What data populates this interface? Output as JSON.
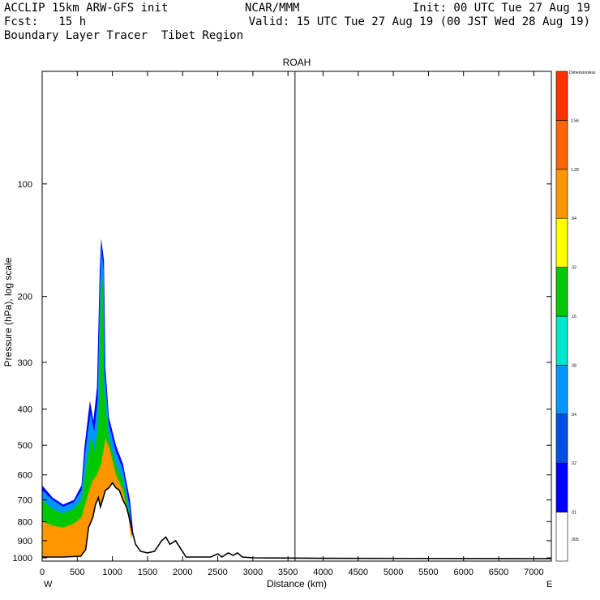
{
  "header": {
    "line1_left": "ACCLIP 15km ARW-GFS init",
    "line1_mid": "NCAR/MMM",
    "line1_right": "Init: 00 UTC Tue 27 Aug 19",
    "line2_left": "Fcst:   15 h",
    "line2_right": "Valid: 15 UTC Tue 27 Aug 19 (00 JST Wed 28 Aug 19)",
    "line3_left": "Boundary Layer Tracer  Tibet Region"
  },
  "chart_data": {
    "type": "heatmap",
    "title": "ROAH",
    "xlabel": "Distance (km)",
    "ylabel": "Pressure (hPa), log scale",
    "x_range": [
      0,
      7250
    ],
    "y_range_hpa": [
      1020,
      50
    ],
    "y_scale": "log",
    "x_ticks": [
      "0",
      "500",
      "1000",
      "1500",
      "2000",
      "2500",
      "3000",
      "3500",
      "4000",
      "4500",
      "5000",
      "5500",
      "6000",
      "6500",
      "7000"
    ],
    "y_ticks": [
      "100",
      "200",
      "300",
      "400",
      "500",
      "600",
      "700",
      "800",
      "900",
      "1000"
    ],
    "x_end_labels": {
      "left": "W",
      "right": "E"
    },
    "vertical_marker_km": 3600,
    "colorbar": {
      "units": "Dimensionless",
      "levels": [
        ".005",
        ".01",
        ".02",
        ".04",
        ".08",
        ".16",
        ".32",
        ".64",
        "1.28",
        "2.56"
      ],
      "colors": [
        "#ffffff",
        "#0000ff",
        "#0050e6",
        "#0096ff",
        "#00e6c8",
        "#00c800",
        "#ffff00",
        "#ff9600",
        "#ff6400",
        "#ff3200"
      ]
    },
    "terrain_hpa": [
      [
        0,
        995
      ],
      [
        300,
        995
      ],
      [
        550,
        990
      ],
      [
        620,
        950
      ],
      [
        660,
        830
      ],
      [
        720,
        780
      ],
      [
        760,
        720
      ],
      [
        800,
        690
      ],
      [
        830,
        730
      ],
      [
        860,
        700
      ],
      [
        900,
        660
      ],
      [
        950,
        650
      ],
      [
        1000,
        630
      ],
      [
        1050,
        650
      ],
      [
        1100,
        660
      ],
      [
        1150,
        700
      ],
      [
        1200,
        730
      ],
      [
        1240,
        780
      ],
      [
        1290,
        860
      ],
      [
        1330,
        920
      ],
      [
        1400,
        960
      ],
      [
        1500,
        970
      ],
      [
        1600,
        960
      ],
      [
        1700,
        900
      ],
      [
        1760,
        880
      ],
      [
        1820,
        920
      ],
      [
        1900,
        900
      ],
      [
        1980,
        950
      ],
      [
        2050,
        995
      ],
      [
        2400,
        995
      ],
      [
        2500,
        975
      ],
      [
        2560,
        995
      ],
      [
        2650,
        970
      ],
      [
        2720,
        985
      ],
      [
        2780,
        970
      ],
      [
        2850,
        995
      ],
      [
        3000,
        1000
      ],
      [
        4000,
        1003
      ],
      [
        7250,
        1005
      ]
    ],
    "tracer_layers": [
      {
        "level": ".01",
        "color": "#0000ff",
        "upper_hpa": [
          [
            0,
            640
          ],
          [
            150,
            690
          ],
          [
            300,
            720
          ],
          [
            450,
            700
          ],
          [
            560,
            640
          ],
          [
            600,
            510
          ],
          [
            640,
            440
          ],
          [
            680,
            380
          ],
          [
            730,
            430
          ],
          [
            780,
            350
          ],
          [
            820,
            170
          ],
          [
            840,
            140
          ],
          [
            880,
            160
          ],
          [
            900,
            310
          ],
          [
            950,
            420
          ],
          [
            1050,
            500
          ],
          [
            1150,
            560
          ],
          [
            1250,
            700
          ],
          [
            1300,
            870
          ]
        ]
      },
      {
        "level": ".04",
        "color": "#0096ff",
        "upper_hpa": [
          [
            0,
            660
          ],
          [
            150,
            700
          ],
          [
            300,
            730
          ],
          [
            450,
            710
          ],
          [
            560,
            660
          ],
          [
            610,
            530
          ],
          [
            650,
            460
          ],
          [
            690,
            410
          ],
          [
            740,
            460
          ],
          [
            790,
            380
          ],
          [
            825,
            180
          ],
          [
            845,
            148
          ],
          [
            875,
            170
          ],
          [
            890,
            320
          ],
          [
            950,
            440
          ],
          [
            1050,
            520
          ],
          [
            1150,
            580
          ],
          [
            1240,
            720
          ],
          [
            1290,
            880
          ]
        ]
      },
      {
        "level": ".16",
        "color": "#00c800",
        "upper_hpa": [
          [
            0,
            700
          ],
          [
            150,
            740
          ],
          [
            300,
            760
          ],
          [
            450,
            740
          ],
          [
            560,
            700
          ],
          [
            620,
            580
          ],
          [
            660,
            520
          ],
          [
            700,
            470
          ],
          [
            750,
            520
          ],
          [
            800,
            430
          ],
          [
            830,
            220
          ],
          [
            850,
            170
          ],
          [
            870,
            200
          ],
          [
            880,
            350
          ],
          [
            950,
            480
          ],
          [
            1050,
            560
          ],
          [
            1150,
            620
          ],
          [
            1230,
            740
          ],
          [
            1280,
            890
          ]
        ]
      },
      {
        "level": ".64",
        "color": "#ff9600",
        "upper_hpa": [
          [
            0,
            800
          ],
          [
            150,
            820
          ],
          [
            300,
            830
          ],
          [
            450,
            810
          ],
          [
            560,
            780
          ],
          [
            650,
            680
          ],
          [
            720,
            620
          ],
          [
            780,
            600
          ],
          [
            840,
            560
          ],
          [
            900,
            480
          ],
          [
            960,
            510
          ],
          [
            1050,
            600
          ],
          [
            1150,
            660
          ],
          [
            1220,
            760
          ],
          [
            1270,
            900
          ]
        ]
      }
    ]
  }
}
